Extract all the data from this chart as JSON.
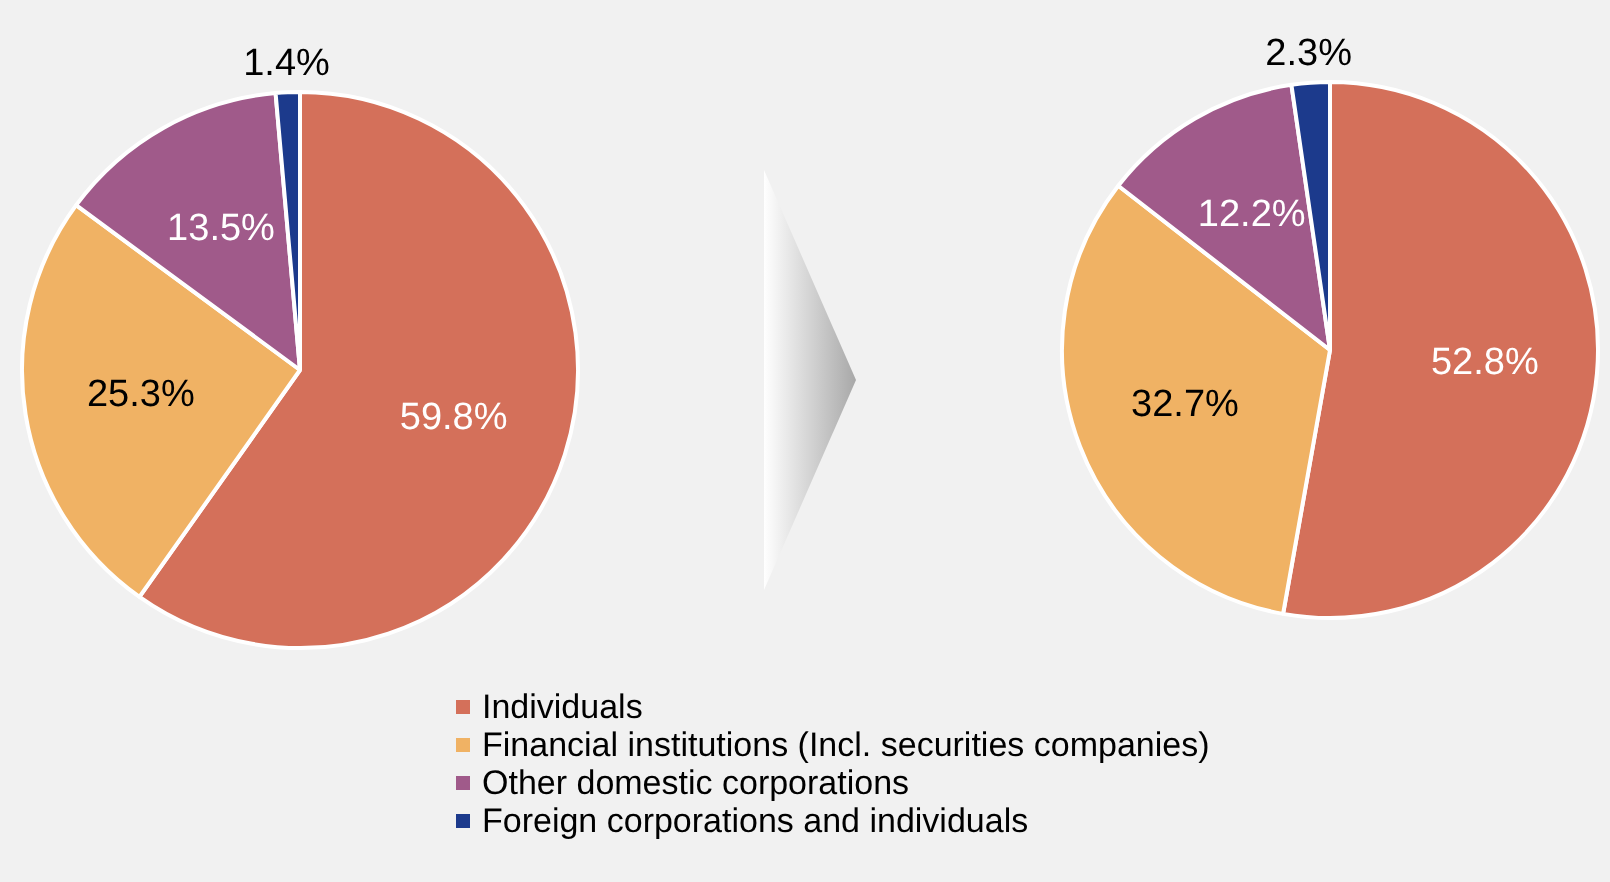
{
  "chart_data": [
    {
      "type": "pie",
      "categories": [
        "Individuals",
        "Financial institutions (Incl. securities companies)",
        "Other domestic corporations",
        "Foreign corporations and individuals"
      ],
      "values": [
        59.8,
        25.3,
        13.5,
        1.4
      ],
      "colors": [
        "#d4705a",
        "#f0b264",
        "#a05a8a",
        "#1c3a8c"
      ],
      "value_labels": [
        "59.8%",
        "25.3%",
        "13.5%",
        "1.4%"
      ],
      "legend": "bottom"
    },
    {
      "type": "pie",
      "categories": [
        null,
        null,
        null,
        null
      ],
      "values": [
        52.8,
        32.7,
        12.2,
        2.3
      ],
      "colors": [
        "#d4705a",
        "#f0b264",
        "#a05a8a",
        "#1c3a8c"
      ],
      "value_labels": [
        "52.8%",
        "32.7%",
        "12.2%",
        "2.3%"
      ]
    }
  ]
}
